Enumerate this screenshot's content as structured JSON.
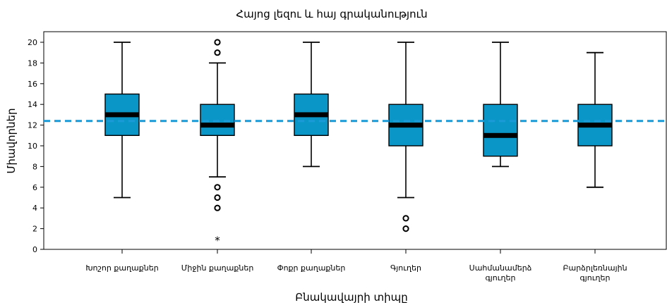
{
  "chart_data": {
    "type": "box",
    "title": "Հայոց լեզու և հայ գրականություն",
    "xlabel": "Բնակավայրի տիպը",
    "ylabel": "Միավորներ",
    "ylim": [
      0,
      20
    ],
    "yticks": [
      0,
      2,
      4,
      6,
      8,
      10,
      12,
      14,
      16,
      18,
      20
    ],
    "reference_line": 12.4,
    "categories": [
      [
        "Խոշոր քաղաքներ"
      ],
      [
        "Միջին քաղաքներ"
      ],
      [
        "Փոքր քաղաքներ"
      ],
      [
        "Գյուղեր"
      ],
      [
        "Սահմանամերձ",
        "գյուղեր"
      ],
      [
        "Բարձրլեռնային",
        "գյուղեր"
      ]
    ],
    "boxes": [
      {
        "whisker_low": 5,
        "q1": 11,
        "median": 13,
        "q3": 15,
        "whisker_high": 20,
        "outliers": [],
        "extremes": []
      },
      {
        "whisker_low": 7,
        "q1": 11,
        "median": 12,
        "q3": 14,
        "whisker_high": 18,
        "outliers": [
          4,
          5,
          6,
          19,
          20
        ],
        "extremes": [
          1
        ]
      },
      {
        "whisker_low": 8,
        "q1": 11,
        "median": 13,
        "q3": 15,
        "whisker_high": 20,
        "outliers": [],
        "extremes": []
      },
      {
        "whisker_low": 5,
        "q1": 10,
        "median": 12,
        "q3": 14,
        "whisker_high": 20,
        "outliers": [
          2,
          3
        ],
        "extremes": []
      },
      {
        "whisker_low": 8,
        "q1": 9,
        "median": 11,
        "q3": 14,
        "whisker_high": 20,
        "outliers": [],
        "extremes": []
      },
      {
        "whisker_low": 6,
        "q1": 10,
        "median": 12,
        "q3": 14,
        "whisker_high": 19,
        "outliers": [],
        "extremes": []
      }
    ],
    "colors": {
      "box_fill": "#0a97c8",
      "reference_line": "#1a9ad6",
      "median": "#000000",
      "stroke": "#000000"
    },
    "outlier_marker": "○",
    "extreme_marker": "*",
    "grid": false
  }
}
